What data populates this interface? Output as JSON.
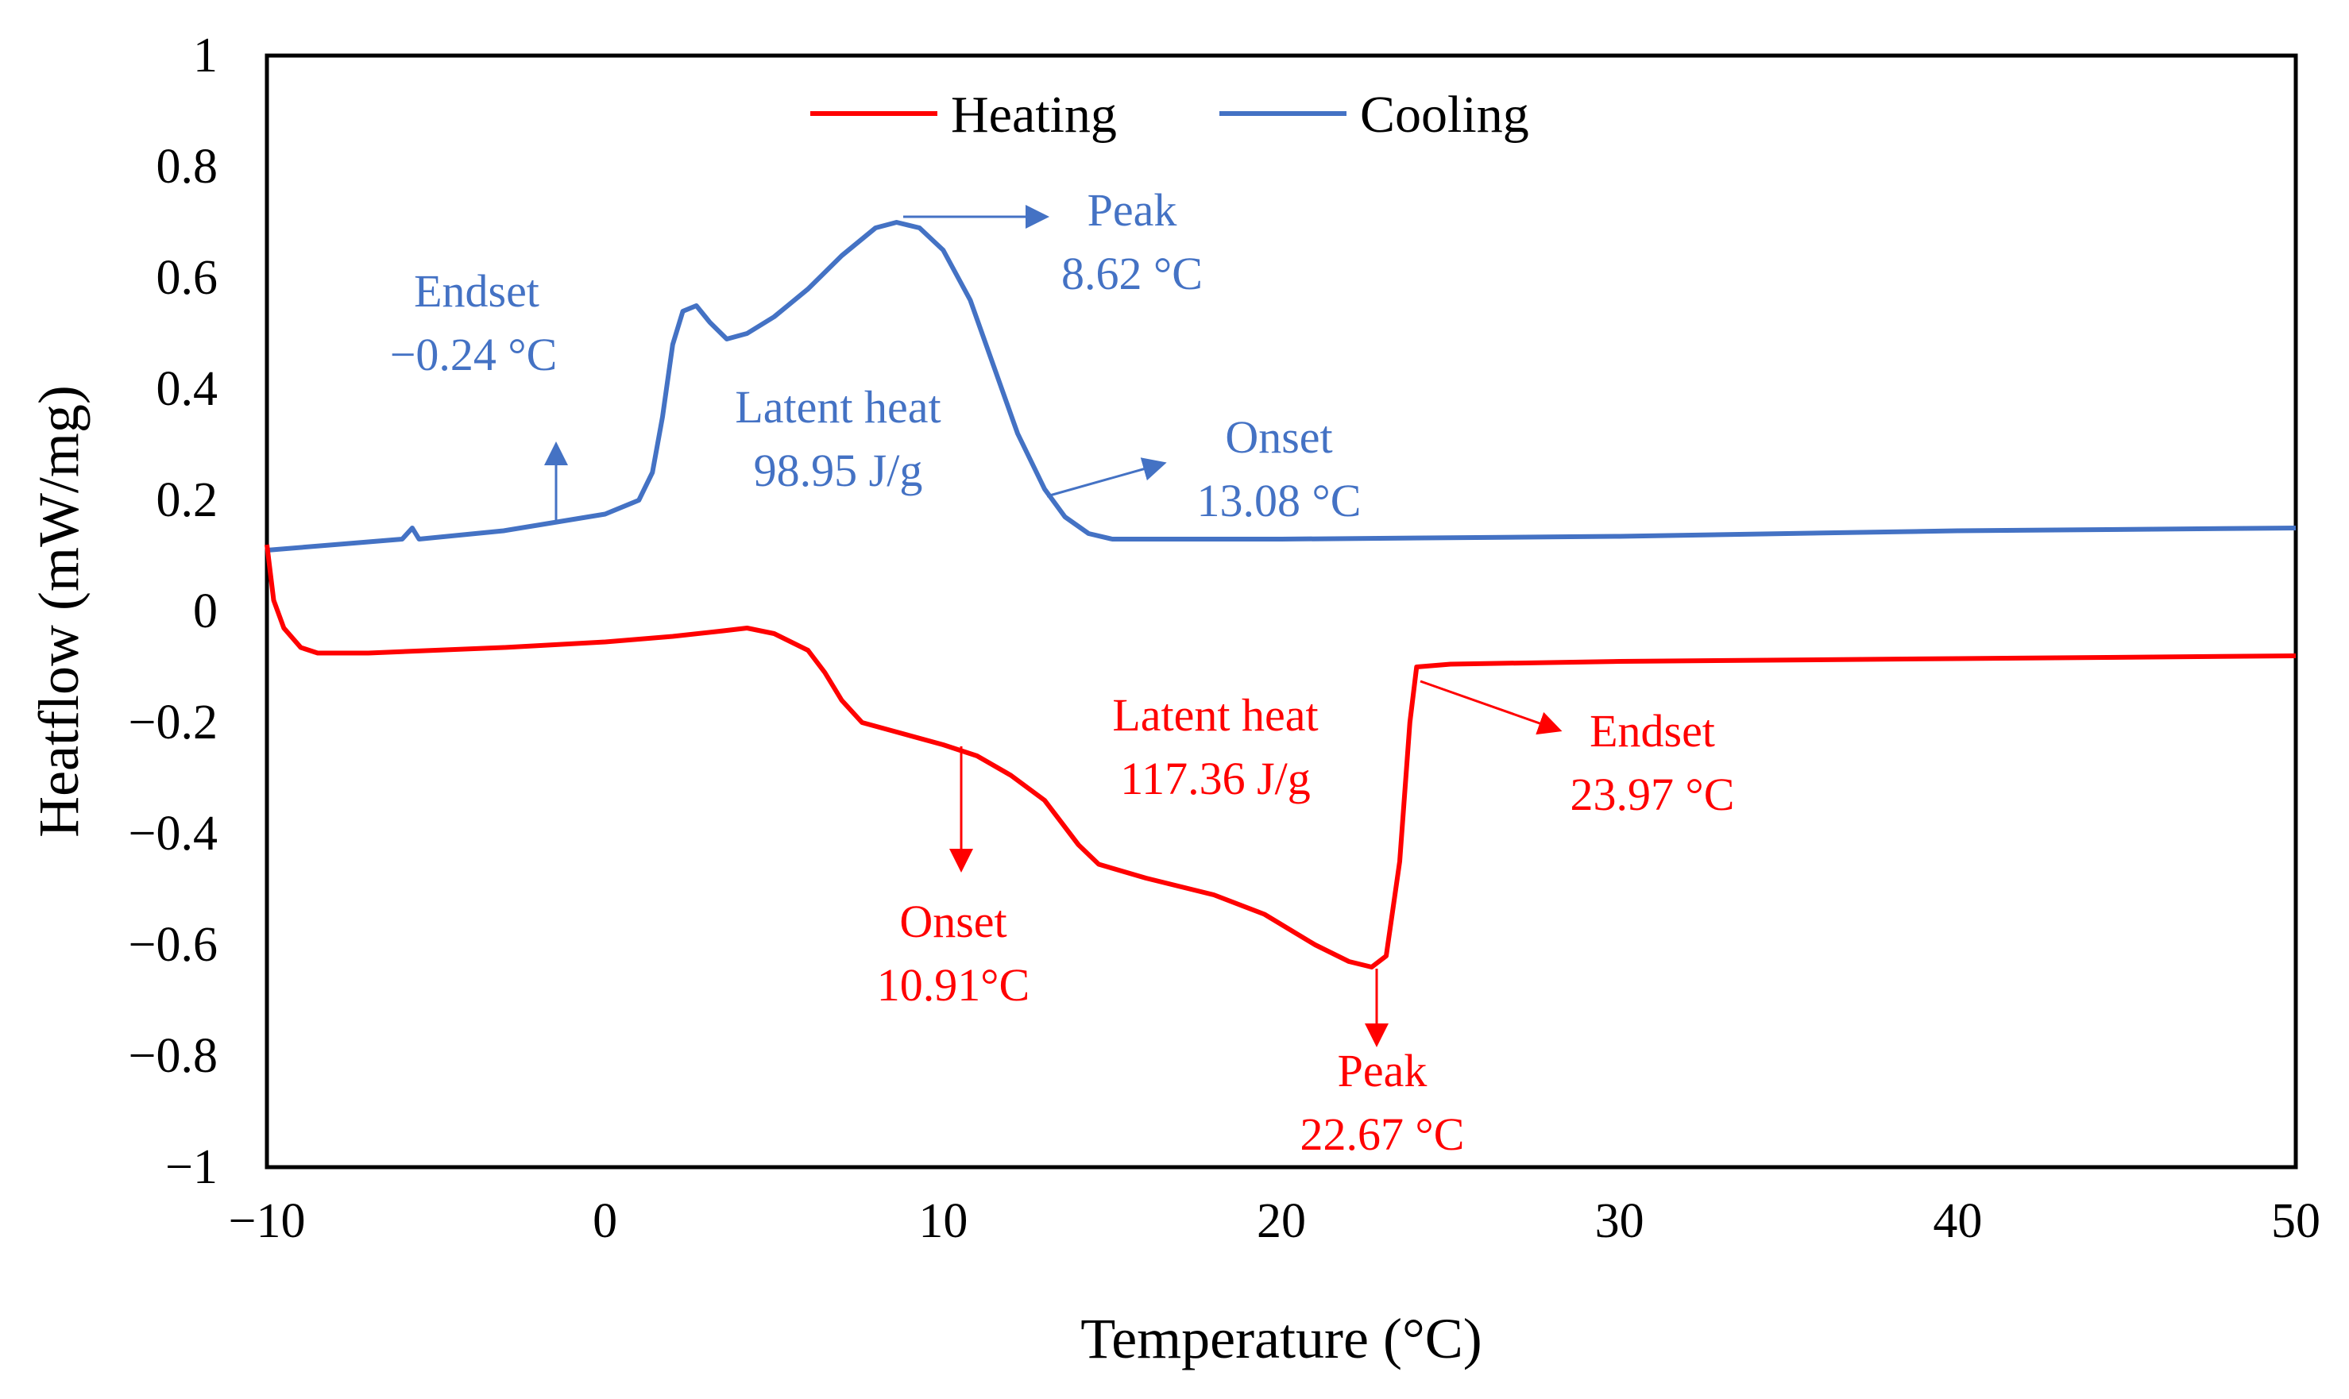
{
  "chart_data": {
    "type": "line",
    "xlabel": "Temperature (°C)",
    "ylabel": "Heatflow (mW/mg)",
    "xlim": [
      -10,
      50
    ],
    "ylim": [
      -1,
      1
    ],
    "x_ticks": [
      -10,
      0,
      10,
      20,
      30,
      40,
      50
    ],
    "x_tick_labels": [
      "−10",
      "0",
      "10",
      "20",
      "30",
      "40",
      "50"
    ],
    "y_ticks": [
      1,
      0.8,
      0.6,
      0.4,
      0.2,
      0,
      -0.2,
      -0.4,
      -0.6,
      -0.8,
      -1
    ],
    "y_tick_labels": [
      "1",
      "0.8",
      "0.6",
      "0.4",
      "0.2",
      "0",
      "−0.2",
      "−0.4",
      "−0.6",
      "−0.8",
      "−1"
    ],
    "legend": {
      "position": "top-center",
      "entries": [
        "Heating",
        "Cooling"
      ]
    },
    "colors": {
      "heating": "#ff0000",
      "cooling": "#4472c4"
    },
    "series": [
      {
        "name": "Heating",
        "color": "#ff0000",
        "points": [
          [
            -10,
            0.12
          ],
          [
            -9.8,
            0.02
          ],
          [
            -9.5,
            -0.03
          ],
          [
            -9,
            -0.065
          ],
          [
            -8.5,
            -0.075
          ],
          [
            -7,
            -0.075
          ],
          [
            -3,
            -0.065
          ],
          [
            0,
            -0.055
          ],
          [
            2,
            -0.045
          ],
          [
            3.5,
            -0.035
          ],
          [
            4.2,
            -0.03
          ],
          [
            5,
            -0.04
          ],
          [
            6,
            -0.07
          ],
          [
            6.5,
            -0.11
          ],
          [
            7,
            -0.16
          ],
          [
            7.6,
            -0.2
          ],
          [
            8.5,
            -0.215
          ],
          [
            10,
            -0.24
          ],
          [
            11,
            -0.26
          ],
          [
            12,
            -0.295
          ],
          [
            13,
            -0.34
          ],
          [
            13.5,
            -0.38
          ],
          [
            14,
            -0.42
          ],
          [
            14.6,
            -0.455
          ],
          [
            16,
            -0.48
          ],
          [
            18,
            -0.51
          ],
          [
            19.5,
            -0.545
          ],
          [
            21,
            -0.6
          ],
          [
            22,
            -0.63
          ],
          [
            22.67,
            -0.64
          ],
          [
            23.1,
            -0.62
          ],
          [
            23.5,
            -0.45
          ],
          [
            23.8,
            -0.2
          ],
          [
            24,
            -0.1
          ],
          [
            25,
            -0.095
          ],
          [
            30,
            -0.09
          ],
          [
            40,
            -0.085
          ],
          [
            50,
            -0.08
          ]
        ]
      },
      {
        "name": "Cooling",
        "color": "#4472c4",
        "points": [
          [
            -10,
            0.11
          ],
          [
            -8,
            0.12
          ],
          [
            -6,
            0.13
          ],
          [
            -5.7,
            0.15
          ],
          [
            -5.5,
            0.13
          ],
          [
            -3,
            0.145
          ],
          [
            -1.5,
            0.16
          ],
          [
            0,
            0.175
          ],
          [
            1,
            0.2
          ],
          [
            1.4,
            0.25
          ],
          [
            1.7,
            0.35
          ],
          [
            2,
            0.48
          ],
          [
            2.3,
            0.54
          ],
          [
            2.7,
            0.55
          ],
          [
            3.1,
            0.52
          ],
          [
            3.6,
            0.49
          ],
          [
            4.2,
            0.5
          ],
          [
            5,
            0.53
          ],
          [
            6,
            0.58
          ],
          [
            7,
            0.64
          ],
          [
            8,
            0.69
          ],
          [
            8.62,
            0.7
          ],
          [
            9.3,
            0.69
          ],
          [
            10,
            0.65
          ],
          [
            10.8,
            0.56
          ],
          [
            11.5,
            0.44
          ],
          [
            12.2,
            0.32
          ],
          [
            13,
            0.22
          ],
          [
            13.6,
            0.17
          ],
          [
            14.3,
            0.14
          ],
          [
            15,
            0.13
          ],
          [
            20,
            0.13
          ],
          [
            30,
            0.135
          ],
          [
            40,
            0.145
          ],
          [
            50,
            0.15
          ]
        ]
      }
    ],
    "annotations": {
      "cool_endset": {
        "label": "Endset",
        "value": "−0.24 °C"
      },
      "cool_latent": {
        "label": "Latent heat",
        "value": "98.95 J/g"
      },
      "cool_peak": {
        "label": "Peak",
        "value": "8.62 °C"
      },
      "cool_onset": {
        "label": "Onset",
        "value": "13.08 °C"
      },
      "heat_onset": {
        "label": "Onset",
        "value": "10.91°C"
      },
      "heat_latent": {
        "label": "Latent heat",
        "value": "117.36 J/g"
      },
      "heat_peak": {
        "label": "Peak",
        "value": "22.67 °C"
      },
      "heat_endset": {
        "label": "Endset",
        "value": "23.97 °C"
      }
    }
  }
}
